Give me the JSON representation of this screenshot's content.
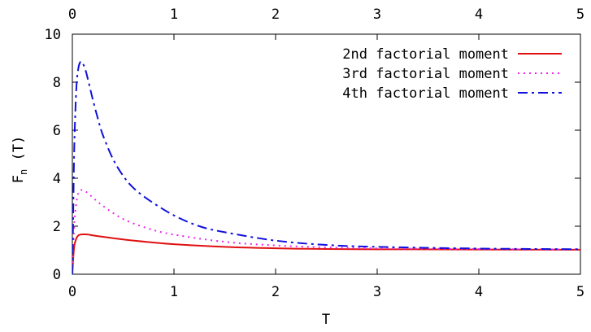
{
  "chart_data": {
    "type": "line",
    "xlabel": "T",
    "ylabel": "F",
    "ylabel_sub": "n",
    "ylabel_suffix": " (T)",
    "xlim": [
      0,
      5
    ],
    "ylim": [
      0,
      10
    ],
    "x_ticks": [
      0,
      1,
      2,
      3,
      4,
      5
    ],
    "y_ticks": [
      0,
      2,
      4,
      6,
      8,
      10
    ],
    "x_ticks_top": [
      0,
      1,
      2,
      3,
      4,
      5
    ],
    "grid": false,
    "legend_position": "top-right",
    "series": [
      {
        "name": "2nd factorial moment",
        "color": "#e01010",
        "style": "solid",
        "x": [
          0,
          0.01,
          0.02,
          0.04,
          0.06,
          0.08,
          0.1,
          0.13,
          0.16,
          0.2,
          0.3,
          0.5,
          0.75,
          1.0,
          1.5,
          2.0,
          2.5,
          3.0,
          4.0,
          5.0
        ],
        "y": [
          0,
          0.75,
          1.2,
          1.5,
          1.62,
          1.65,
          1.66,
          1.66,
          1.65,
          1.62,
          1.56,
          1.45,
          1.34,
          1.25,
          1.14,
          1.08,
          1.05,
          1.04,
          1.03,
          1.02
        ]
      },
      {
        "name": "3rd factorial moment",
        "color": "#ee22ee",
        "style": "dotted",
        "x": [
          0,
          0.01,
          0.02,
          0.04,
          0.06,
          0.08,
          0.1,
          0.13,
          0.16,
          0.2,
          0.3,
          0.5,
          0.75,
          1.0,
          1.5,
          2.0,
          2.5,
          3.0,
          4.0,
          5.0
        ],
        "y": [
          0,
          1.2,
          2.2,
          3.0,
          3.4,
          3.5,
          3.5,
          3.45,
          3.35,
          3.2,
          2.85,
          2.3,
          1.9,
          1.65,
          1.35,
          1.2,
          1.12,
          1.08,
          1.05,
          1.03
        ]
      },
      {
        "name": "4th factorial moment",
        "color": "#1010e0",
        "style": "dashdot",
        "x": [
          0,
          0.01,
          0.02,
          0.04,
          0.06,
          0.08,
          0.1,
          0.13,
          0.16,
          0.2,
          0.25,
          0.3,
          0.4,
          0.5,
          0.6,
          0.75,
          1.0,
          1.25,
          1.5,
          2.0,
          2.5,
          3.0,
          4.0,
          5.0
        ],
        "y": [
          0,
          3.0,
          5.5,
          7.8,
          8.6,
          8.85,
          8.8,
          8.5,
          8.0,
          7.3,
          6.5,
          5.8,
          4.8,
          4.1,
          3.6,
          3.1,
          2.45,
          2.0,
          1.75,
          1.4,
          1.22,
          1.14,
          1.07,
          1.04
        ]
      }
    ]
  }
}
